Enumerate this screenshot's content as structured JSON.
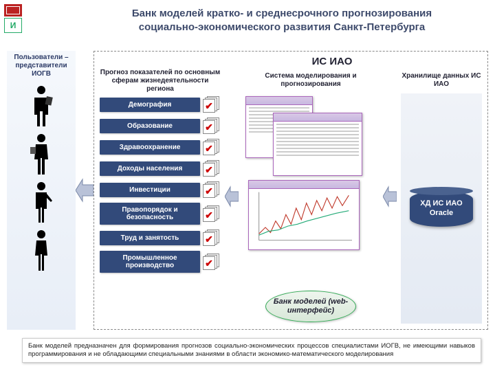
{
  "title_line1": "Банк моделей кратко- и среднесрочного прогнозирования",
  "title_line2": "социально-экономического развития Санкт-Петербурга",
  "colors": {
    "pill_bg": "#324a7a",
    "accent_red": "#b22222",
    "accent_green": "#2a8a4a",
    "arrow_fill": "#b9c2d8",
    "title_color": "#3d4a6b"
  },
  "users": {
    "label": "Пользователи – представители ИОГВ",
    "count": 4
  },
  "system": {
    "title": "ИС ИАО",
    "forecast": {
      "header": "Прогноз показателей по основным сферам жизнедеятельности региона",
      "items": [
        "Демография",
        "Образование",
        "Здравоохранение",
        "Доходы населения",
        "Инвестиции",
        "Правопорядок и безопасность",
        "Труд и занятость",
        "Промышленное производство"
      ]
    },
    "modeling": {
      "header": "Система моделирования и прогнозирования",
      "bank_label": "Банк моделей (web-интерфейс)"
    },
    "storage": {
      "header": "Хранилище данных ИС ИАО",
      "db_label": "ХД ИС ИАО Oracle"
    }
  },
  "footer": "Банк моделей предназначен для формирования прогнозов социально-экономических процессов специалистами ИОГВ, не имеющими навыков программирования и не обладающими специальными знаниями в области экономико-математического моделирования"
}
